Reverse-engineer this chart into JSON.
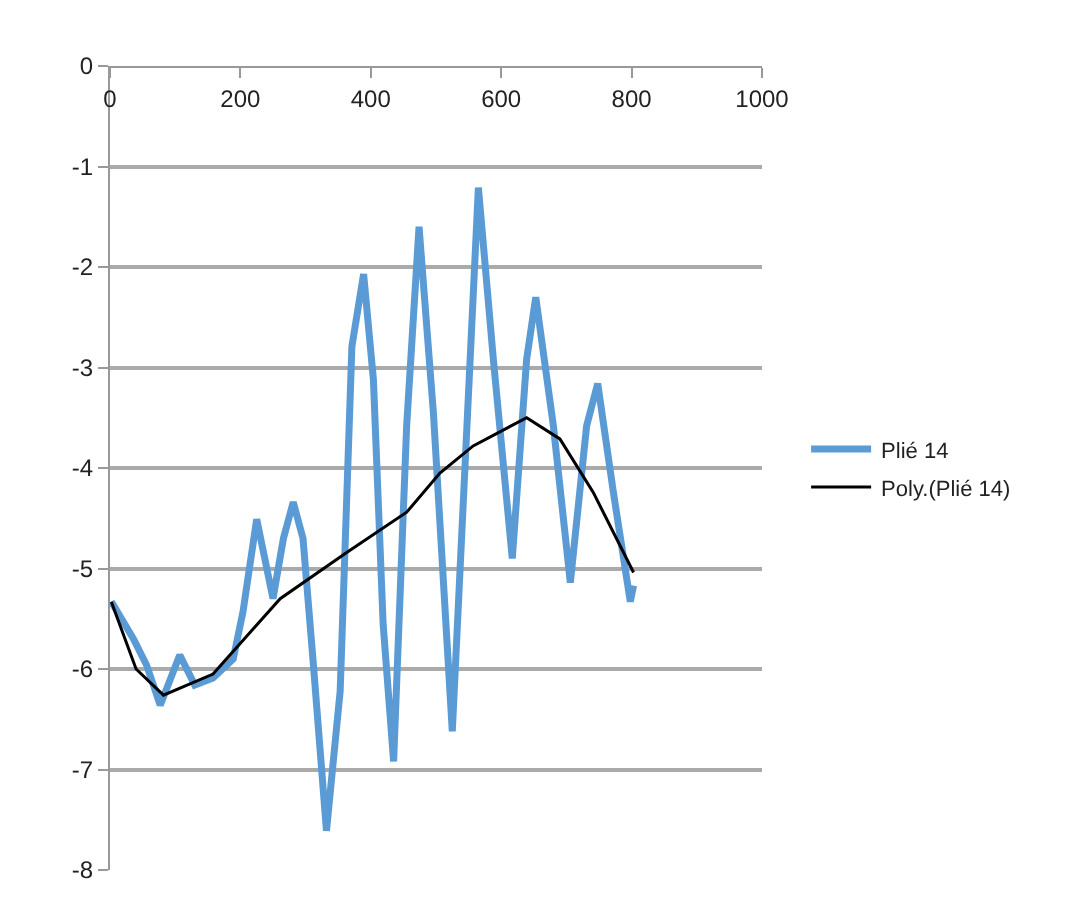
{
  "chart_data": {
    "type": "line",
    "series": [
      {
        "name": "Plié 14",
        "color": "#5b9bd5",
        "x": [
          2,
          36,
          56,
          77,
          107,
          130,
          158,
          189,
          204,
          225,
          250,
          266,
          281,
          296,
          312,
          332,
          353,
          371,
          389,
          404,
          419,
          435,
          455,
          474,
          496,
          525,
          565,
          588,
          617,
          639,
          653,
          680,
          706,
          731,
          748,
          772,
          798,
          803
        ],
        "values": [
          -5.33,
          -5.7,
          -5.96,
          -6.36,
          -5.86,
          -6.16,
          -6.09,
          -5.9,
          -5.43,
          -4.51,
          -5.3,
          -4.7,
          -4.34,
          -4.7,
          -5.96,
          -7.61,
          -6.22,
          -2.79,
          -2.07,
          -3.12,
          -5.56,
          -6.92,
          -3.58,
          -1.6,
          -3.45,
          -6.62,
          -1.21,
          -2.92,
          -4.9,
          -2.92,
          -2.3,
          -3.58,
          -5.14,
          -3.58,
          -3.16,
          -4.24,
          -5.33,
          -5.17
        ]
      },
      {
        "name": "Poly.(Plié 14)",
        "color": "#000000",
        "x": [
          2,
          40,
          82,
          158,
          261,
          363,
          455,
          506,
          557,
          639,
          690,
          741,
          803
        ],
        "values": [
          -5.33,
          -6.0,
          -6.26,
          -6.05,
          -5.3,
          -4.84,
          -4.44,
          -4.05,
          -3.78,
          -3.5,
          -3.71,
          -4.24,
          -5.04
        ]
      }
    ],
    "xlim": [
      0,
      1000
    ],
    "xticks": [
      0,
      200,
      400,
      600,
      800,
      1000
    ],
    "ylim": [
      -8,
      0
    ],
    "yticks": [
      0,
      -1,
      -2,
      -3,
      -4,
      -5,
      -6,
      -7,
      -8
    ],
    "grid": "y",
    "legend": "right",
    "marker": "none",
    "line_style": "solid"
  }
}
